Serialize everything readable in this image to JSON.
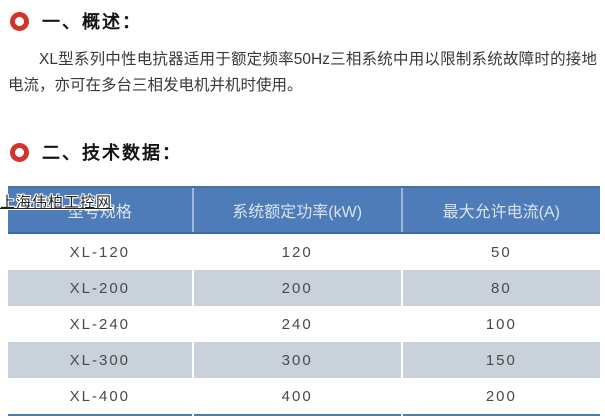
{
  "colors": {
    "accent_red": "#d1342c",
    "table_header_blue": "#4d7cb8",
    "row_alt_bg": "#c9d2da"
  },
  "overview": {
    "heading": "一、概述：",
    "paragraph": "XL型系列中性电抗器适用于额定频率50Hz三相系统中用以限制系统故障时的接地电流，亦可在多台三相发电机并机时使用。"
  },
  "technical": {
    "heading": "二、技术数据：",
    "table": {
      "headers": [
        "型号规格",
        "系统额定功率(kW)",
        "最大允许电流(A)"
      ],
      "rows": [
        [
          "XL-120",
          "120",
          "50"
        ],
        [
          "XL-200",
          "200",
          "80"
        ],
        [
          "XL-240",
          "240",
          "100"
        ],
        [
          "XL-300",
          "300",
          "150"
        ],
        [
          "XL-400",
          "400",
          "200"
        ]
      ]
    }
  },
  "watermark": "上海伟柏工控网",
  "chart_data": {
    "type": "table",
    "title": "二、技术数据",
    "columns": [
      "型号规格",
      "系统额定功率(kW)",
      "最大允许电流(A)"
    ],
    "rows": [
      [
        "XL-120",
        120,
        50
      ],
      [
        "XL-200",
        200,
        80
      ],
      [
        "XL-240",
        240,
        100
      ],
      [
        "XL-300",
        300,
        150
      ],
      [
        "XL-400",
        400,
        200
      ]
    ]
  }
}
